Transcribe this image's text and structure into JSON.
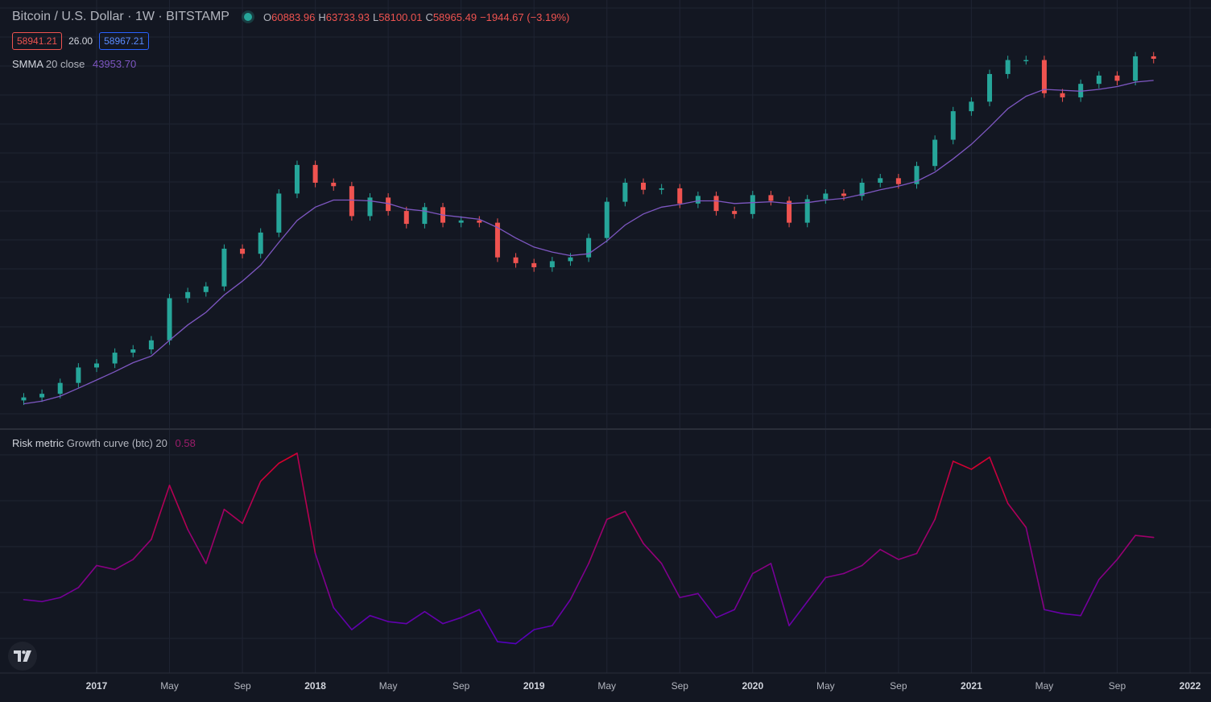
{
  "header": {
    "symbol": "Bitcoin / U.S. Dollar",
    "interval": "1W",
    "exchange": "BITSTAMP",
    "ohlc": {
      "o_label": "O",
      "o": "60883.96",
      "h_label": "H",
      "h": "63733.93",
      "l_label": "L",
      "l": "58100.01",
      "c_label": "C",
      "c": "58965.49",
      "change": "−1944.67 (−3.19%)"
    },
    "sell_price": "58941.21",
    "spread": "26.00",
    "buy_price": "58967.21"
  },
  "indicator_smma": {
    "name": "SMMA",
    "params": "20 close",
    "value": "43953.70"
  },
  "indicator_risk": {
    "name": "Risk metric",
    "params": "Growth curve (btc) 20",
    "value": "0.58"
  },
  "colors": {
    "background": "#131722",
    "up": "#26a69a",
    "down": "#ef5350",
    "smma": "#7e57c2",
    "grid": "#1f2433"
  },
  "x_labels": [
    "2017",
    "May",
    "Sep",
    "2018",
    "May",
    "Sep",
    "2019",
    "May",
    "Sep",
    "2020",
    "May",
    "Sep",
    "2021",
    "May",
    "Sep",
    "2022"
  ],
  "chart_data": [
    {
      "type": "candlestick",
      "title": "Bitcoin / U.S. Dollar · 1W · BITSTAMP",
      "interval": "weekly",
      "x_range": [
        "2016-09",
        "2022-01"
      ],
      "price_scale": "log",
      "series": [
        {
          "name": "BTC/USD price (approx. weekly close)",
          "x": [
            "2016-09",
            "2016-10",
            "2016-11",
            "2016-12",
            "2017-01",
            "2017-02",
            "2017-03",
            "2017-04",
            "2017-05",
            "2017-06",
            "2017-07",
            "2017-08",
            "2017-09",
            "2017-10",
            "2017-11",
            "2017-12",
            "2018-01",
            "2018-02",
            "2018-03",
            "2018-04",
            "2018-05",
            "2018-06",
            "2018-07",
            "2018-08",
            "2018-09",
            "2018-10",
            "2018-11",
            "2018-12",
            "2019-01",
            "2019-02",
            "2019-03",
            "2019-04",
            "2019-05",
            "2019-06",
            "2019-07",
            "2019-08",
            "2019-09",
            "2019-10",
            "2019-11",
            "2019-12",
            "2020-01",
            "2020-02",
            "2020-03",
            "2020-04",
            "2020-05",
            "2020-06",
            "2020-07",
            "2020-08",
            "2020-09",
            "2020-10",
            "2020-11",
            "2020-12",
            "2021-01",
            "2021-02",
            "2021-03",
            "2021-04",
            "2021-05",
            "2021-06",
            "2021-07",
            "2021-08",
            "2021-09",
            "2021-10",
            "2021-11"
          ],
          "values": [
            600,
            630,
            730,
            900,
            950,
            1100,
            1150,
            1300,
            2300,
            2500,
            2700,
            4500,
            4200,
            5600,
            9500,
            14000,
            11000,
            10500,
            7000,
            9000,
            7500,
            6300,
            7900,
            6400,
            6600,
            6400,
            4000,
            3700,
            3500,
            3800,
            4000,
            5200,
            8500,
            11000,
            10000,
            10200,
            8300,
            9200,
            7500,
            7200,
            9300,
            8600,
            6400,
            8800,
            9500,
            9200,
            11000,
            11700,
            10800,
            13800,
            19700,
            29000,
            33000,
            48000,
            58000,
            58000,
            37000,
            35000,
            42000,
            47000,
            43800,
            61000,
            59000
          ]
        },
        {
          "name": "SMMA 20 close",
          "values": [
            550,
            570,
            610,
            680,
            760,
            850,
            960,
            1050,
            1300,
            1600,
            1900,
            2400,
            2900,
            3600,
            4900,
            6600,
            7900,
            8700,
            8700,
            8600,
            8300,
            7700,
            7500,
            7100,
            6900,
            6700,
            6000,
            5200,
            4600,
            4300,
            4100,
            4200,
            5000,
            6200,
            7200,
            7900,
            8200,
            8600,
            8600,
            8300,
            8400,
            8500,
            8300,
            8400,
            8700,
            8900,
            9400,
            10000,
            10500,
            11200,
            12700,
            15200,
            18500,
            23400,
            30000,
            35500,
            39000,
            38500,
            38000,
            39000,
            40500,
            43000,
            44000
          ]
        }
      ]
    },
    {
      "type": "line",
      "title": "Risk metric Growth curve (btc) 20",
      "y_range": [
        0,
        1
      ],
      "series": [
        {
          "name": "Risk metric",
          "x": [
            "2016-09",
            "2016-10",
            "2016-11",
            "2016-12",
            "2017-01",
            "2017-02",
            "2017-03",
            "2017-04",
            "2017-05",
            "2017-06",
            "2017-07",
            "2017-08",
            "2017-09",
            "2017-10",
            "2017-11",
            "2017-12",
            "2018-01",
            "2018-02",
            "2018-03",
            "2018-04",
            "2018-05",
            "2018-06",
            "2018-07",
            "2018-08",
            "2018-09",
            "2018-10",
            "2018-11",
            "2018-12",
            "2019-01",
            "2019-02",
            "2019-03",
            "2019-04",
            "2019-05",
            "2019-06",
            "2019-07",
            "2019-08",
            "2019-09",
            "2019-10",
            "2019-11",
            "2019-12",
            "2020-01",
            "2020-02",
            "2020-03",
            "2020-04",
            "2020-05",
            "2020-06",
            "2020-07",
            "2020-08",
            "2020-09",
            "2020-10",
            "2020-11",
            "2020-12",
            "2021-01",
            "2021-02",
            "2021-03",
            "2021-04",
            "2021-05",
            "2021-06",
            "2021-07",
            "2021-08",
            "2021-09",
            "2021-10",
            "2021-11"
          ],
          "values": [
            0.27,
            0.26,
            0.28,
            0.33,
            0.44,
            0.42,
            0.47,
            0.57,
            0.84,
            0.62,
            0.45,
            0.72,
            0.65,
            0.86,
            0.95,
            1.0,
            0.5,
            0.23,
            0.12,
            0.19,
            0.16,
            0.15,
            0.21,
            0.15,
            0.18,
            0.22,
            0.06,
            0.05,
            0.12,
            0.14,
            0.27,
            0.45,
            0.67,
            0.71,
            0.55,
            0.45,
            0.28,
            0.3,
            0.18,
            0.22,
            0.4,
            0.45,
            0.14,
            0.26,
            0.38,
            0.4,
            0.44,
            0.52,
            0.47,
            0.5,
            0.67,
            0.96,
            0.92,
            0.98,
            0.75,
            0.63,
            0.22,
            0.2,
            0.19,
            0.37,
            0.47,
            0.59,
            0.58
          ]
        }
      ]
    }
  ]
}
